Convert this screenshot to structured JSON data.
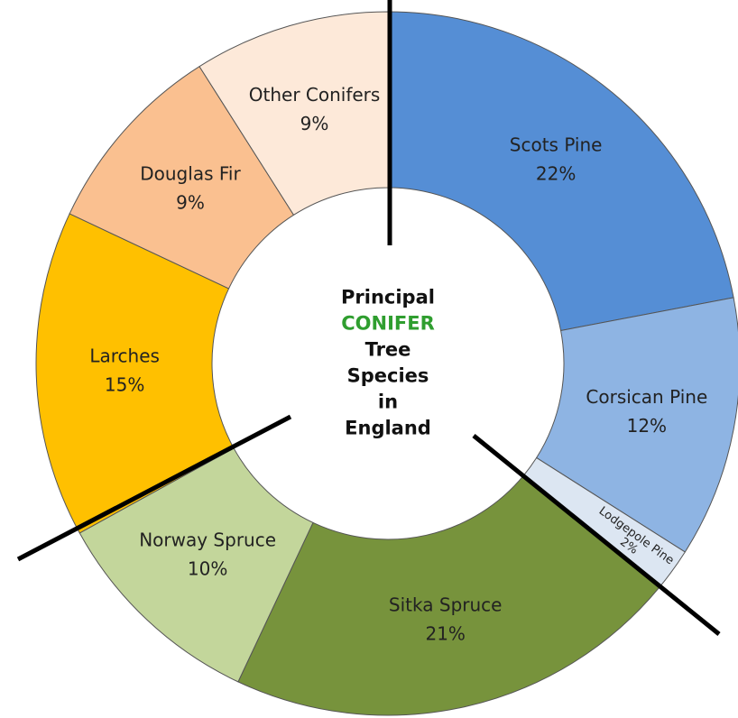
{
  "chart_data": {
    "type": "donut",
    "title_lines": [
      "Principal",
      "CONIFER",
      "Tree",
      "Species",
      "in",
      "England"
    ],
    "title_highlight_color": "#2f9e2f",
    "categories": [
      "Scots Pine",
      "Corsican Pine",
      "Lodgepole Pine",
      "Sitka Spruce",
      "Norway Spruce",
      "Larches",
      "Douglas Fir",
      "Other Conifers"
    ],
    "values": [
      22,
      12,
      2,
      21,
      10,
      15,
      9,
      9
    ],
    "value_labels": [
      "22%",
      "12%",
      "2%",
      "21%",
      "10%",
      "15%",
      "9%",
      "9%"
    ],
    "colors": [
      "#558ed5",
      "#8eb4e3",
      "#dce6f2",
      "#77933c",
      "#c3d69b",
      "#ffc000",
      "#fac090",
      "#fde9d9"
    ]
  }
}
